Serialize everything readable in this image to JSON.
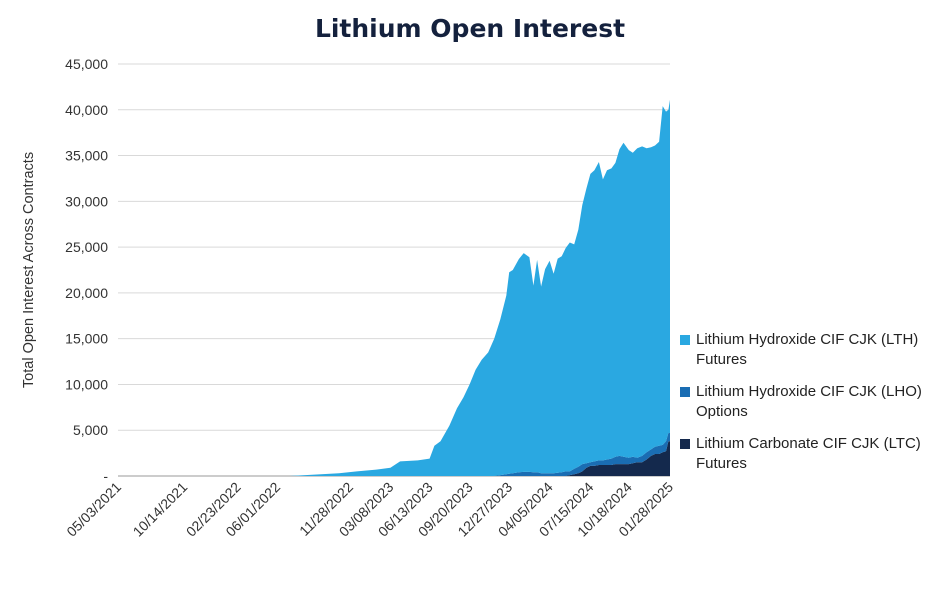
{
  "chart_data": {
    "type": "area",
    "stacked": true,
    "title": "Lithium Open Interest",
    "xlabel": "",
    "ylabel": "Total Open Interest Across Contracts",
    "ylim": [
      0,
      45000
    ],
    "yticks": [
      0,
      5000,
      10000,
      15000,
      20000,
      25000,
      30000,
      35000,
      40000,
      45000
    ],
    "ytick_labels": [
      "-",
      "5,000",
      "10,000",
      "15,000",
      "20,000",
      "25,000",
      "30,000",
      "35,000",
      "40,000",
      "45,000"
    ],
    "xlim": [
      "2021-05-03",
      "2025-01-28"
    ],
    "xtick_labels": [
      "05/03/2021",
      "10/14/2021",
      "02/23/2022",
      "06/01/2022",
      "11/28/2022",
      "03/08/2023",
      "06/13/2023",
      "09/20/2023",
      "12/27/2023",
      "04/05/2024",
      "07/15/2024",
      "10/18/2024",
      "01/28/2025"
    ],
    "xticks": [
      "2021-05-03",
      "2021-10-14",
      "2022-02-23",
      "2022-06-01",
      "2022-11-28",
      "2023-03-08",
      "2023-06-13",
      "2023-09-20",
      "2023-12-27",
      "2024-04-05",
      "2024-07-15",
      "2024-10-18",
      "2025-01-28"
    ],
    "grid": true,
    "legend_position": "right",
    "x": [
      "2021-05-03",
      "2022-07-01",
      "2022-09-01",
      "2022-11-01",
      "2022-12-15",
      "2023-02-01",
      "2023-03-08",
      "2023-04-01",
      "2023-05-15",
      "2023-06-13",
      "2023-06-25",
      "2023-07-10",
      "2023-08-01",
      "2023-08-20",
      "2023-09-05",
      "2023-09-20",
      "2023-10-05",
      "2023-10-20",
      "2023-11-05",
      "2023-11-20",
      "2023-12-05",
      "2023-12-20",
      "2023-12-27",
      "2024-01-05",
      "2024-01-20",
      "2024-02-01",
      "2024-02-15",
      "2024-02-25",
      "2024-03-05",
      "2024-03-15",
      "2024-03-25",
      "2024-04-05",
      "2024-04-15",
      "2024-04-25",
      "2024-05-05",
      "2024-05-15",
      "2024-05-25",
      "2024-06-05",
      "2024-06-15",
      "2024-06-25",
      "2024-07-05",
      "2024-07-15",
      "2024-07-25",
      "2024-08-05",
      "2024-08-15",
      "2024-08-25",
      "2024-09-05",
      "2024-09-15",
      "2024-09-25",
      "2024-10-05",
      "2024-10-18",
      "2024-10-28",
      "2024-11-08",
      "2024-11-20",
      "2024-12-01",
      "2024-12-12",
      "2024-12-22",
      "2025-01-01",
      "2025-01-10",
      "2025-01-18",
      "2025-01-24",
      "2025-01-28"
    ],
    "series": [
      {
        "name": "Lithium Carbonate CIF CJK (LTC) Futures",
        "color": "#14294d",
        "values": [
          0,
          0,
          0,
          0,
          0,
          0,
          0,
          0,
          0,
          0,
          0,
          0,
          0,
          0,
          0,
          0,
          0,
          0,
          0,
          0,
          0,
          0,
          0,
          0,
          0,
          0,
          0,
          0,
          0,
          0,
          0,
          0,
          0,
          0,
          0,
          0,
          100,
          200,
          300,
          500,
          900,
          1100,
          1100,
          1200,
          1200,
          1200,
          1200,
          1300,
          1300,
          1300,
          1300,
          1400,
          1500,
          1500,
          1800,
          2200,
          2400,
          2400,
          2600,
          2700,
          3800,
          3800
        ]
      },
      {
        "name": "Lithium Hydroxide CIF CJK (LHO) Options",
        "color": "#1a6db3",
        "values": [
          0,
          0,
          0,
          0,
          0,
          0,
          0,
          0,
          0,
          0,
          0,
          0,
          0,
          0,
          0,
          0,
          0,
          0,
          0,
          0,
          100,
          200,
          250,
          300,
          400,
          450,
          450,
          400,
          400,
          300,
          300,
          300,
          300,
          350,
          400,
          500,
          400,
          600,
          700,
          800,
          500,
          400,
          500,
          500,
          500,
          600,
          700,
          800,
          900,
          800,
          700,
          700,
          500,
          700,
          800,
          700,
          800,
          900,
          800,
          1100,
          900,
          900
        ]
      },
      {
        "name": "Lithium Hydroxide CIF CJK (LTH) Futures",
        "color": "#2aa8e1",
        "values": [
          0,
          0,
          150,
          300,
          500,
          700,
          900,
          1600,
          1700,
          1900,
          3300,
          3800,
          5500,
          7400,
          8600,
          10000,
          11600,
          12700,
          13500,
          15000,
          17000,
          19500,
          22000,
          22200,
          23300,
          23900,
          23450,
          20400,
          23200,
          20400,
          22300,
          23200,
          21800,
          23400,
          23600,
          24400,
          25000,
          24500,
          25900,
          28300,
          30000,
          31500,
          31800,
          32600,
          30700,
          31600,
          31700,
          32100,
          33500,
          34300,
          33600,
          33200,
          33800,
          33800,
          33200,
          33000,
          32900,
          33200,
          37000,
          36000,
          35300,
          36400
        ]
      }
    ]
  },
  "legend": [
    {
      "text": "Lithium Hydroxide CIF CJK (LTH) Futures",
      "color": "#2aa8e1"
    },
    {
      "text": "Lithium Hydroxide CIF CJK (LHO) Options",
      "color": "#1a6db3"
    },
    {
      "text": "Lithium Carbonate CIF CJK (LTC) Futures",
      "color": "#14294d"
    }
  ]
}
